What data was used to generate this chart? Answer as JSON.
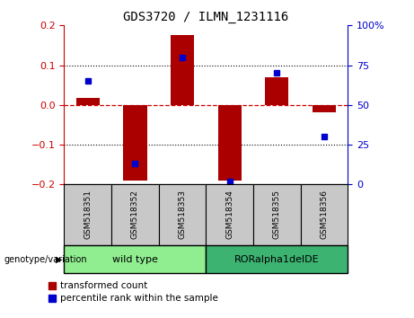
{
  "title": "GDS3720 / ILMN_1231116",
  "samples": [
    "GSM518351",
    "GSM518352",
    "GSM518353",
    "GSM518354",
    "GSM518355",
    "GSM518356"
  ],
  "transformed_count": [
    0.018,
    -0.19,
    0.175,
    -0.19,
    0.07,
    -0.018
  ],
  "percentile_rank": [
    65,
    13,
    80,
    2,
    70,
    30
  ],
  "ylim_left": [
    -0.2,
    0.2
  ],
  "ylim_right": [
    0,
    100
  ],
  "yticks_left": [
    -0.2,
    -0.1,
    0.0,
    0.1,
    0.2
  ],
  "yticks_right": [
    0,
    25,
    50,
    75,
    100
  ],
  "ytick_labels_right": [
    "0",
    "25",
    "50",
    "75",
    "100%"
  ],
  "groups": [
    {
      "label": "wild type",
      "samples": [
        0,
        1,
        2
      ],
      "color": "#90EE90"
    },
    {
      "label": "RORalpha1delDE",
      "samples": [
        3,
        4,
        5
      ],
      "color": "#3CB371"
    }
  ],
  "bar_color": "#AA0000",
  "marker_color": "#0000CC",
  "bar_width": 0.5,
  "left_axis_color": "#CC0000",
  "right_axis_color": "#0000CC",
  "background_label": "#C8C8C8",
  "legend_items": [
    "transformed count",
    "percentile rank within the sample"
  ],
  "genotype_label": "genotype/variation"
}
